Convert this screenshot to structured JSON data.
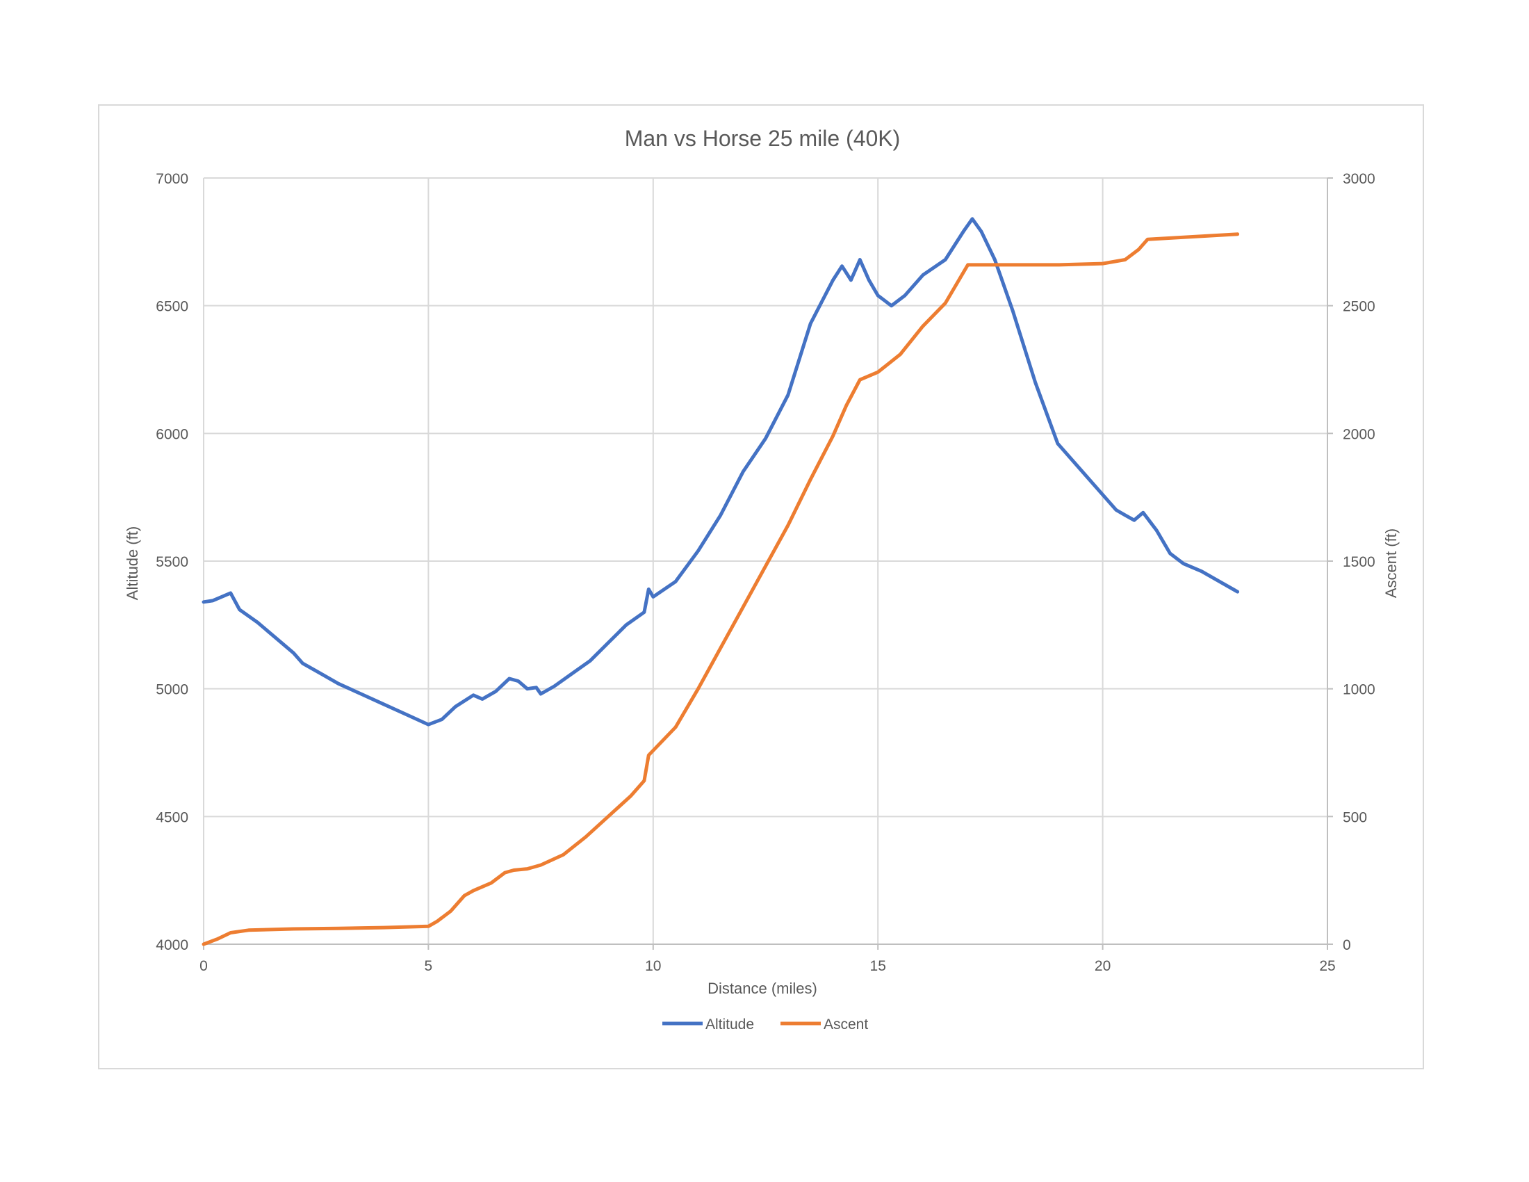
{
  "chart_data": {
    "type": "line",
    "title": "Man vs Horse 25 mile (40K)",
    "xlabel": "Distance (miles)",
    "ylabel": "Altitude (ft)",
    "y2label": "Ascent (ft)",
    "xlim": [
      0,
      25
    ],
    "ylim": [
      4000,
      7000
    ],
    "y2lim": [
      0,
      3000
    ],
    "xticks": [
      0,
      5,
      10,
      15,
      20,
      25
    ],
    "yticks": [
      4000,
      4500,
      5000,
      5500,
      6000,
      6500,
      7000
    ],
    "y2ticks": [
      0,
      500,
      1000,
      1500,
      2000,
      2500,
      3000
    ],
    "grid": true,
    "legend_position": "bottom",
    "series": [
      {
        "name": "Altitude",
        "axis": "left",
        "color": "#4472c4",
        "x": [
          0,
          0.2,
          0.4,
          0.6,
          0.8,
          1.2,
          1.6,
          2.0,
          2.2,
          2.6,
          3.0,
          3.5,
          4.0,
          4.5,
          5.0,
          5.3,
          5.6,
          6.0,
          6.2,
          6.5,
          6.8,
          7.0,
          7.2,
          7.4,
          7.5,
          7.8,
          8.2,
          8.6,
          9.0,
          9.4,
          9.8,
          9.9,
          10.0,
          10.5,
          11.0,
          11.5,
          12.0,
          12.5,
          13.0,
          13.5,
          14.0,
          14.2,
          14.4,
          14.6,
          14.8,
          15.0,
          15.3,
          15.6,
          16.0,
          16.5,
          16.9,
          17.1,
          17.3,
          17.6,
          18.0,
          18.5,
          19.0,
          19.5,
          20.0,
          20.3,
          20.5,
          20.7,
          20.9,
          21.2,
          21.5,
          21.8,
          22.2,
          22.6,
          23.0
        ],
        "y": [
          5340,
          5345,
          5360,
          5375,
          5310,
          5260,
          5200,
          5140,
          5100,
          5060,
          5020,
          4980,
          4940,
          4900,
          4860,
          4880,
          4930,
          4975,
          4960,
          4990,
          5040,
          5030,
          5000,
          5005,
          4980,
          5010,
          5060,
          5110,
          5180,
          5250,
          5300,
          5390,
          5360,
          5420,
          5540,
          5680,
          5850,
          5980,
          6150,
          6430,
          6600,
          6655,
          6600,
          6680,
          6600,
          6540,
          6500,
          6540,
          6620,
          6680,
          6790,
          6840,
          6790,
          6680,
          6480,
          6200,
          5960,
          5860,
          5760,
          5700,
          5680,
          5660,
          5690,
          5620,
          5530,
          5490,
          5460,
          5420,
          5380
        ]
      },
      {
        "name": "Ascent",
        "axis": "right",
        "color": "#ed7d31",
        "x": [
          0,
          0.3,
          0.6,
          1.0,
          2.0,
          3.0,
          4.0,
          5.0,
          5.2,
          5.5,
          5.8,
          6.0,
          6.4,
          6.7,
          6.9,
          7.2,
          7.5,
          8.0,
          8.5,
          9.0,
          9.5,
          9.8,
          9.9,
          10.5,
          11.0,
          11.5,
          12.0,
          12.5,
          13.0,
          13.5,
          14.0,
          14.3,
          14.6,
          15.0,
          15.5,
          16.0,
          16.5,
          17.0,
          17.3,
          18.0,
          19.0,
          20.0,
          20.5,
          20.8,
          21.0,
          22.0,
          23.0
        ],
        "y": [
          0,
          20,
          45,
          55,
          60,
          62,
          65,
          70,
          90,
          130,
          190,
          210,
          240,
          280,
          290,
          295,
          310,
          350,
          420,
          500,
          580,
          640,
          740,
          850,
          1000,
          1160,
          1320,
          1480,
          1640,
          1820,
          1990,
          2110,
          2210,
          2240,
          2310,
          2420,
          2510,
          2660,
          2660,
          2660,
          2660,
          2665,
          2680,
          2720,
          2760,
          2770,
          2780
        ]
      }
    ]
  }
}
